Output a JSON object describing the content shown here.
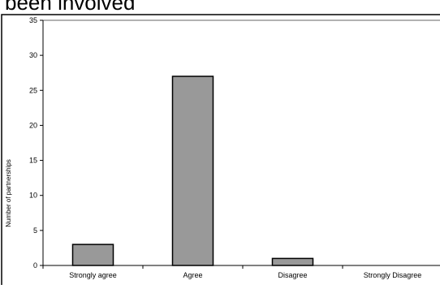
{
  "header": {
    "title_fragment": "been involved"
  },
  "chart_data": {
    "type": "bar",
    "title": "",
    "xlabel": "",
    "ylabel": "Number of partnerships",
    "categories": [
      "Strongly agree",
      "Agree",
      "Disagree",
      "Strongly Disagree"
    ],
    "values": [
      3,
      27,
      1,
      0
    ],
    "ylim": [
      0,
      35
    ],
    "yticks": [
      0,
      5,
      10,
      15,
      20,
      25,
      30,
      35
    ],
    "grid": false,
    "legend": "none",
    "colors": {
      "bar_fill": "#999999",
      "bar_stroke": "#000000",
      "top_line": "#999999",
      "frame": "#000000"
    }
  }
}
